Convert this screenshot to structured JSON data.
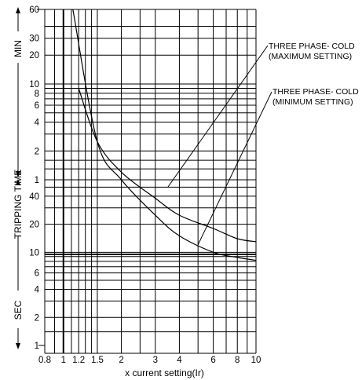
{
  "chart_data": {
    "type": "line",
    "x_axis": {
      "label": "x current setting(Ir)",
      "scale": "log",
      "range": [
        0.8,
        10
      ],
      "tick_labels": [
        "0.8",
        "1",
        "1.2",
        "1.5",
        "2",
        "3",
        "4",
        "6",
        "8",
        "10"
      ],
      "tick_values": [
        0.8,
        1,
        1.2,
        1.5,
        2,
        3,
        4,
        6,
        8,
        10
      ]
    },
    "y_axis": {
      "label": "TRIPPING TIME",
      "scale": "log",
      "min_section": {
        "unit_label": "MIN",
        "tick_labels": [
          "60",
          "30",
          "20",
          "10",
          "8",
          "6",
          "4",
          "2",
          "1"
        ],
        "tick_values_minutes": [
          60,
          30,
          20,
          10,
          8,
          6,
          4,
          2,
          1
        ]
      },
      "sec_section": {
        "unit_label": "SEC",
        "tick_labels": [
          "40",
          "20",
          "10",
          "6",
          "4",
          "2",
          "1"
        ],
        "tick_values_seconds": [
          40,
          20,
          10,
          6,
          4,
          2,
          1
        ]
      }
    },
    "grid": true,
    "series": [
      {
        "name": "THREE PHASE- COLD (MAXIMUM SETTING)",
        "points_x": [
          1.2,
          1.5,
          2,
          3,
          4,
          6,
          8,
          10
        ],
        "points_time_seconds": [
          540,
          150,
          72,
          38,
          25,
          18,
          14,
          13
        ]
      },
      {
        "name": "THREE PHASE- COLD (MINIMUM SETTING)",
        "points_x": [
          1.12,
          1.5,
          2,
          3,
          4,
          6,
          8,
          10
        ],
        "points_time_seconds": [
          3600,
          150,
          60,
          25,
          15,
          10,
          8.8,
          8.2
        ]
      }
    ],
    "annotations": [
      {
        "line1": "THREE PHASE- COLD",
        "line2": "(MAXIMUM SETTING)"
      },
      {
        "line1": "THREE PHASE- COLD",
        "line2": "(MINIMUM SETTING)"
      }
    ]
  }
}
